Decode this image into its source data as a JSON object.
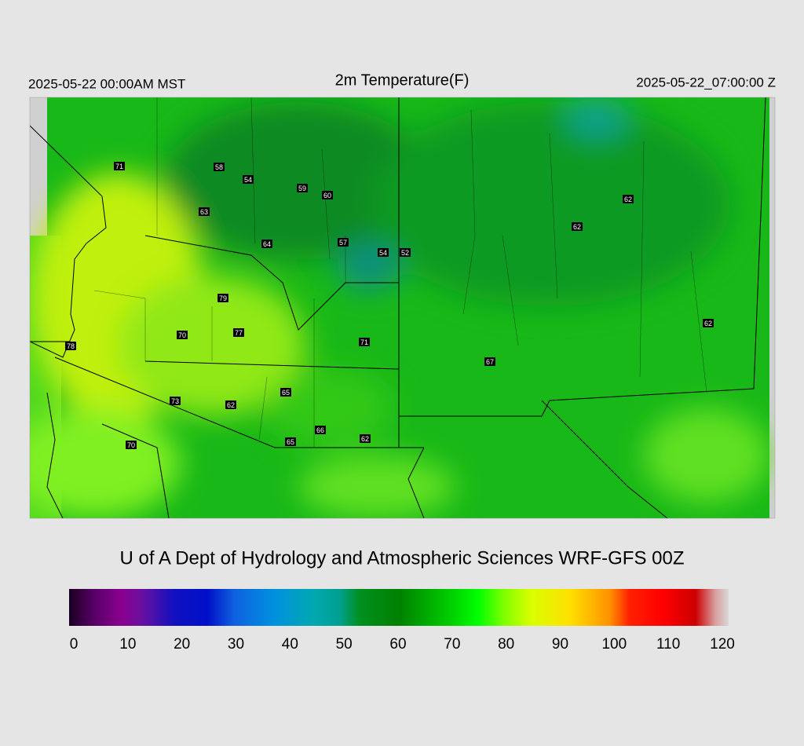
{
  "header": {
    "left": "2025-05-22 00:00AM MST",
    "title": "2m Temperature(F)",
    "right": "2025-05-22_07:00:00 Z"
  },
  "map": {
    "stations": [
      71,
      58,
      54,
      59,
      60,
      63,
      64,
      57,
      54,
      52,
      62,
      62,
      79,
      70,
      77,
      71,
      67,
      62,
      78,
      73,
      62,
      65,
      66,
      62,
      70,
      65
    ]
  },
  "footer": {
    "credit": "U of A Dept of Hydrology and Atmospheric Sciences WRF-GFS 00Z"
  },
  "colorbar": {
    "range": [
      0,
      120
    ],
    "ticks": [
      0,
      10,
      20,
      30,
      40,
      50,
      60,
      70,
      80,
      90,
      100,
      110,
      120
    ]
  }
}
